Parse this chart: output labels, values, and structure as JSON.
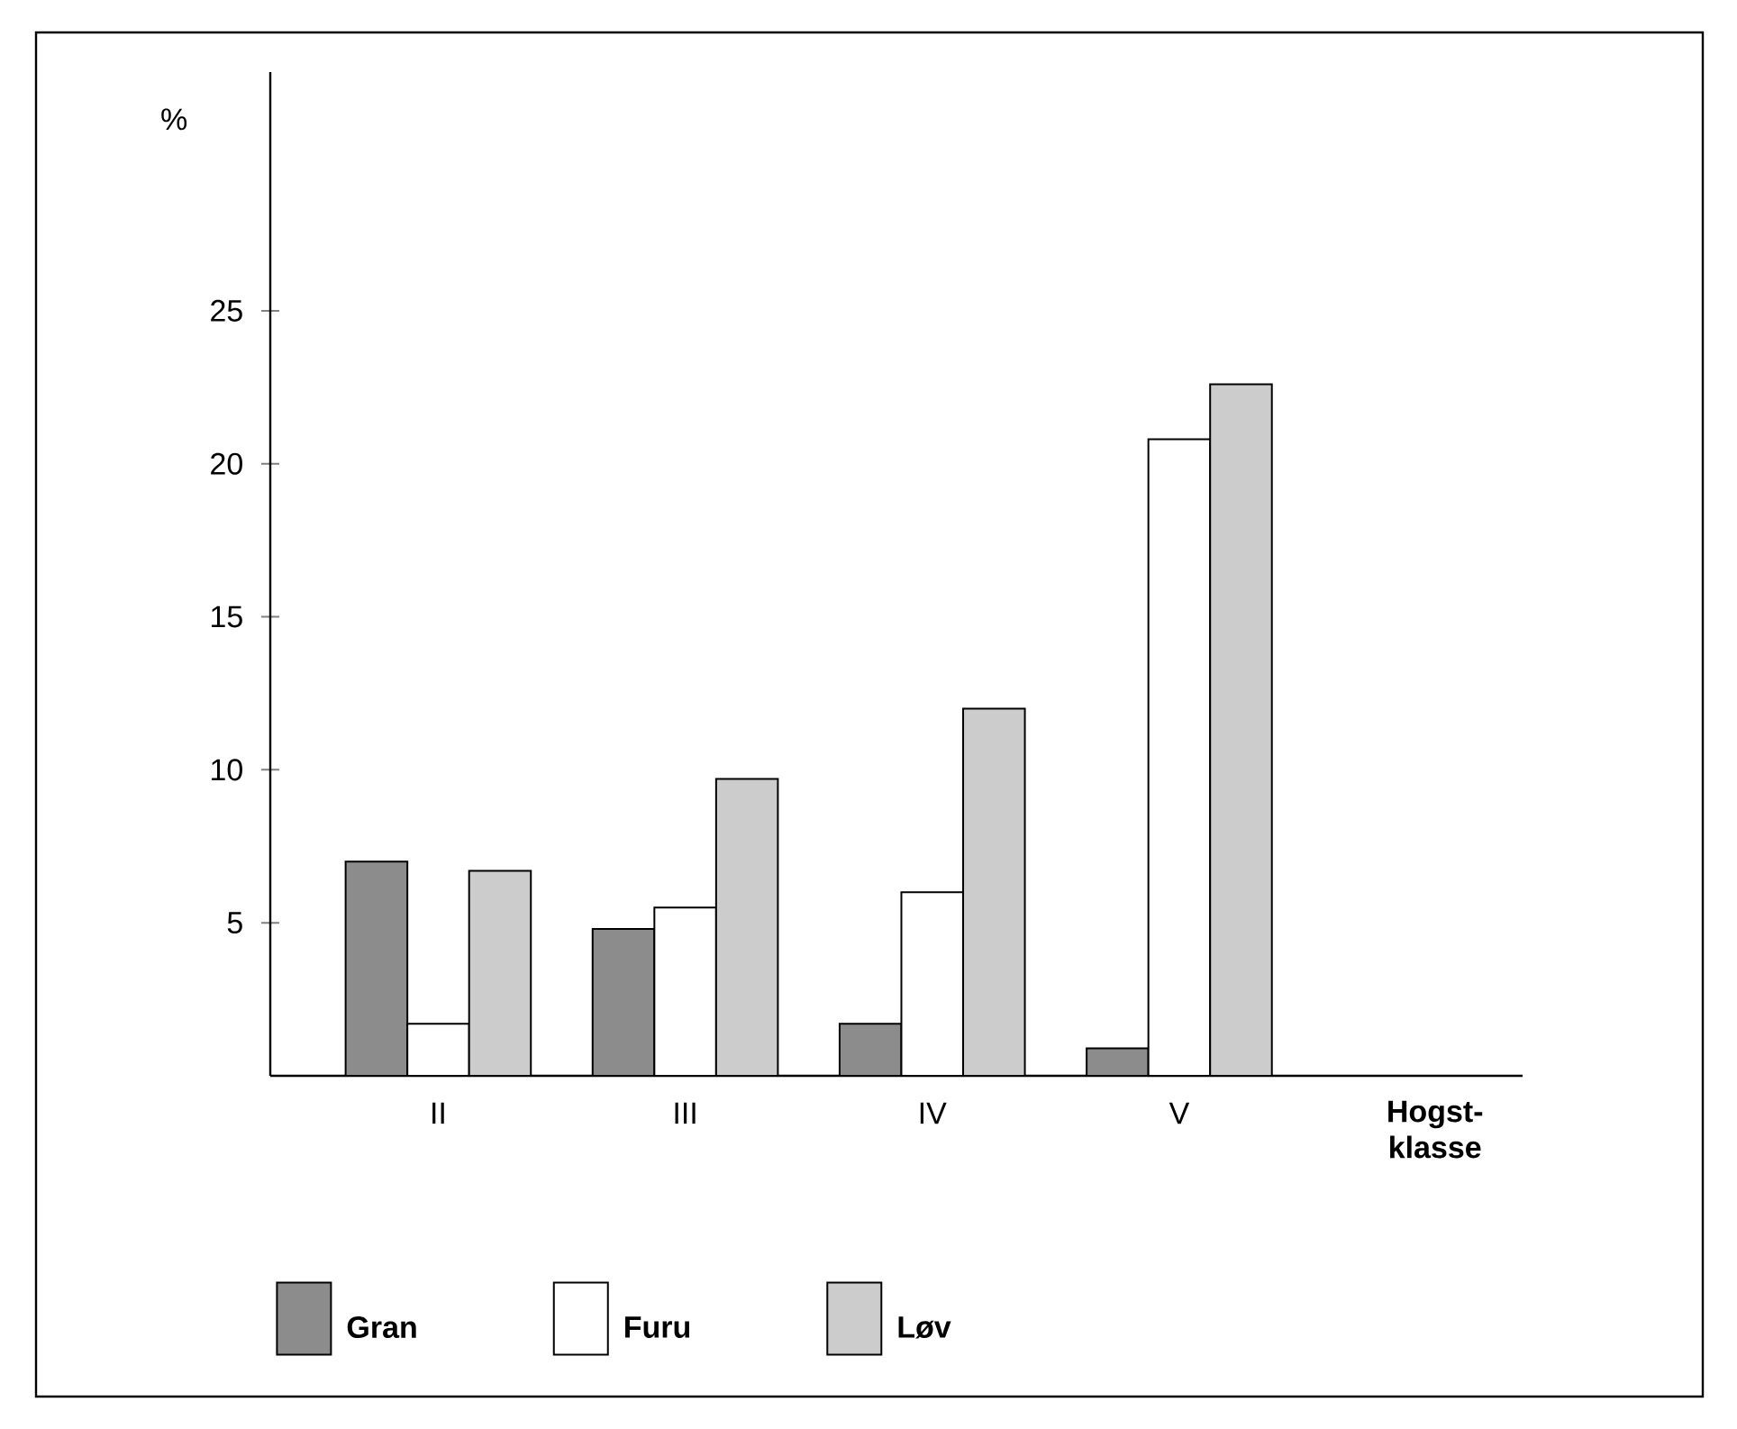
{
  "chart_data": {
    "type": "bar",
    "categories": [
      "II",
      "III",
      "IV",
      "V"
    ],
    "xlabel": "Hogst-klasse",
    "ylabel": "%",
    "series": [
      {
        "name": "Gran",
        "color": "#8c8c8c",
        "values": [
          7.0,
          4.8,
          1.7,
          0.9
        ]
      },
      {
        "name": "Furu",
        "color": "#ffffff",
        "values": [
          1.7,
          5.5,
          6.0,
          20.8
        ]
      },
      {
        "name": "Løv",
        "color": "#cccccc",
        "values": [
          6.7,
          9.7,
          12.0,
          22.6
        ]
      }
    ],
    "ylim": [
      0,
      32.8
    ],
    "yticks": [
      5,
      10,
      15,
      20,
      25
    ],
    "legend": "bottom"
  }
}
